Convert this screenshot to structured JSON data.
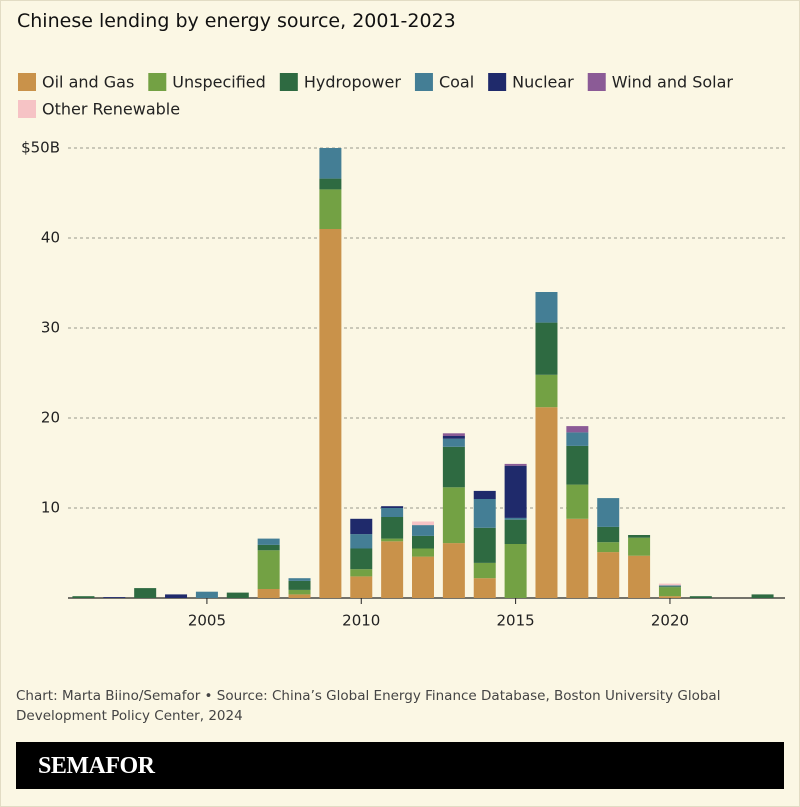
{
  "chart_data": {
    "type": "stacked-bar",
    "title": "Chinese lending by energy source, 2001-2023",
    "source": "Chart: Marta Biino/Semafor • Source: China’s Global Energy Finance Database, Boston University Global Development Policy Center, 2024",
    "brand": "SEMAFOR",
    "x": [
      2001,
      2002,
      2003,
      2004,
      2005,
      2006,
      2007,
      2008,
      2009,
      2010,
      2011,
      2012,
      2013,
      2014,
      2015,
      2016,
      2017,
      2018,
      2019,
      2020,
      2021,
      2022,
      2023
    ],
    "xlim": [
      2000.5,
      2023.5
    ],
    "xticks": [
      2005,
      2010,
      2015,
      2020
    ],
    "ylim": [
      0,
      50
    ],
    "yticks": [
      0,
      10,
      20,
      30,
      40,
      {
        "value": 50,
        "label": "$50B"
      }
    ],
    "grid": true,
    "series": [
      {
        "name": "Oil and Gas",
        "color": "#c9924a",
        "values": [
          0,
          0,
          0,
          0,
          0,
          0,
          1.0,
          0.4,
          41.0,
          2.4,
          6.3,
          4.6,
          6.1,
          2.2,
          0,
          21.2,
          8.8,
          5.1,
          4.7,
          0.2,
          0,
          0,
          0
        ]
      },
      {
        "name": "Unspecified",
        "color": "#73a144",
        "values": [
          0,
          0,
          0,
          0,
          0,
          0,
          4.3,
          0.5,
          4.4,
          0.8,
          0.3,
          0.9,
          6.2,
          1.7,
          6.0,
          3.6,
          3.8,
          1.1,
          2.0,
          1.0,
          0,
          0,
          0
        ]
      },
      {
        "name": "Hydropower",
        "color": "#2e6a41",
        "values": [
          0.2,
          0,
          1.1,
          0,
          0,
          0.6,
          0.6,
          1.0,
          1.2,
          2.3,
          2.4,
          1.4,
          4.5,
          3.9,
          2.7,
          5.8,
          4.3,
          1.7,
          0.3,
          0.1,
          0.2,
          0,
          0.4
        ]
      },
      {
        "name": "Coal",
        "color": "#447e95",
        "values": [
          0,
          0,
          0,
          0,
          0.7,
          0,
          0.7,
          0.3,
          3.4,
          1.6,
          1.0,
          1.2,
          0.9,
          3.2,
          0.2,
          3.4,
          1.5,
          3.2,
          0,
          0.1,
          0,
          0,
          0
        ]
      },
      {
        "name": "Nuclear",
        "color": "#1f2a6b",
        "values": [
          0,
          0.1,
          0,
          0.4,
          0,
          0,
          0,
          0,
          0,
          1.7,
          0.2,
          0,
          0.3,
          0.9,
          5.8,
          0,
          0,
          0,
          0,
          0,
          0,
          0,
          0
        ]
      },
      {
        "name": "Wind and Solar",
        "color": "#8b5b96",
        "values": [
          0,
          0,
          0,
          0,
          0,
          0,
          0,
          0,
          0,
          0,
          0,
          0,
          0.3,
          0,
          0.2,
          0,
          0.7,
          0,
          0,
          0,
          0,
          0,
          0
        ]
      },
      {
        "name": "Other Renewable",
        "color": "#f6c3c5",
        "values": [
          0,
          0,
          0,
          0,
          0,
          0,
          0,
          0,
          0,
          0,
          0,
          0.4,
          0,
          0,
          0,
          0,
          0,
          0,
          0,
          0.2,
          0,
          0,
          0
        ]
      }
    ]
  }
}
